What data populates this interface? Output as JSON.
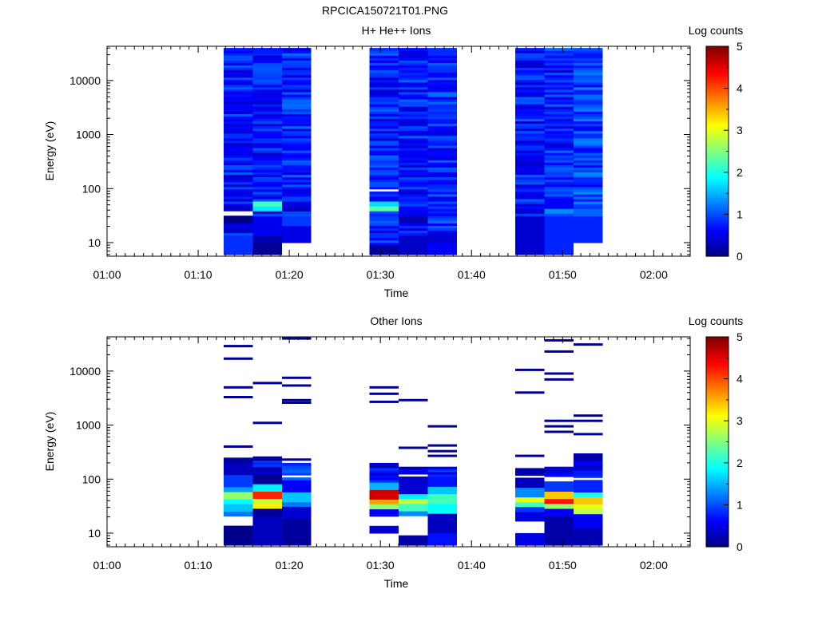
{
  "figure": {
    "title": "RPCICA150721T01.PNG"
  },
  "chart_data": [
    {
      "type": "heatmap",
      "title": "H+ He++ Ions",
      "xlabel": "Time",
      "ylabel": "Energy (eV)",
      "y_scale": "log",
      "x_ticks": [
        "01:00",
        "01:10",
        "01:20",
        "01:30",
        "01:40",
        "01:50",
        "02:00"
      ],
      "y_ticks": [
        "10",
        "100",
        "1000",
        "10000"
      ],
      "colorbar": {
        "label": "Log counts",
        "range": [
          0,
          5
        ],
        "ticks": [
          "0",
          "1",
          "2",
          "3",
          "4",
          "5"
        ]
      },
      "columns": [
        {
          "t_start": "01:12:48",
          "t_end": "01:16:00",
          "e_min": 6,
          "e_max": 40000,
          "base_level": 0.72,
          "features": [
            {
              "e_low": 6,
              "e_high": 14,
              "level": 0.85
            },
            {
              "e_low": 24,
              "e_high": 30,
              "level": 0.0
            },
            {
              "e_low": 30,
              "e_high": 38,
              "level": -1
            },
            {
              "e_low": 38,
              "e_high": 50,
              "level": 0.3
            },
            {
              "e_low": 70,
              "e_high": 90,
              "level": 0.5
            }
          ]
        },
        {
          "t_start": "01:16:00",
          "t_end": "01:19:12",
          "e_min": 6,
          "e_max": 40000,
          "base_level": 0.7,
          "features": [
            {
              "e_low": 6,
              "e_high": 10,
              "level": 0.1
            },
            {
              "e_low": 10,
              "e_high": 14,
              "level": 0.25
            },
            {
              "e_low": 14,
              "e_high": 30,
              "level": 0.55
            },
            {
              "e_low": 38,
              "e_high": 48,
              "level": 1.8
            },
            {
              "e_low": 48,
              "e_high": 58,
              "level": 2.2
            }
          ]
        },
        {
          "t_start": "01:19:12",
          "t_end": "01:22:24",
          "e_min": 10,
          "e_max": 40000,
          "base_level": 0.8,
          "features": [
            {
              "e_low": 10,
              "e_high": 20,
              "level": 0.5
            },
            {
              "e_low": 20,
              "e_high": 30,
              "level": 0.9
            },
            {
              "e_low": 40,
              "e_high": 48,
              "level": 0.3
            }
          ]
        },
        {
          "t_start": "01:28:48",
          "t_end": "01:32:00",
          "e_min": 6,
          "e_max": 40000,
          "base_level": 0.75,
          "features": [
            {
              "e_low": 6,
              "e_high": 9,
              "level": 0.15
            },
            {
              "e_low": 38,
              "e_high": 46,
              "level": 2.3
            },
            {
              "e_low": 46,
              "e_high": 60,
              "level": 1.7
            },
            {
              "e_low": 92,
              "e_high": 100,
              "level": -1
            }
          ]
        },
        {
          "t_start": "01:32:00",
          "t_end": "01:35:12",
          "e_min": 6,
          "e_max": 40000,
          "base_level": 0.75,
          "features": [
            {
              "e_low": 6,
              "e_high": 14,
              "level": 0.35
            },
            {
              "e_low": 24,
              "e_high": 30,
              "level": 0.25
            }
          ]
        },
        {
          "t_start": "01:35:12",
          "t_end": "01:38:24",
          "e_min": 6,
          "e_max": 40000,
          "base_level": 0.8,
          "features": [
            {
              "e_low": 6,
              "e_high": 10,
              "level": 0.6
            },
            {
              "e_low": 10,
              "e_high": 16,
              "level": 0.4
            }
          ]
        },
        {
          "t_start": "01:44:48",
          "t_end": "01:48:00",
          "e_min": 6,
          "e_max": 40000,
          "base_level": 0.72,
          "features": [
            {
              "e_low": 6,
              "e_high": 30,
              "level": 0.4
            }
          ]
        },
        {
          "t_start": "01:48:00",
          "t_end": "01:51:12",
          "e_min": 6,
          "e_max": 40000,
          "base_level": 0.78,
          "features": [
            {
              "e_low": 6,
              "e_high": 30,
              "level": 0.8
            },
            {
              "e_low": 34,
              "e_high": 44,
              "level": 1.3
            }
          ]
        },
        {
          "t_start": "01:51:12",
          "t_end": "01:54:24",
          "e_min": 10,
          "e_max": 40000,
          "base_level": 0.95,
          "features": [
            {
              "e_low": 10,
              "e_high": 30,
              "level": 0.8
            },
            {
              "e_low": 30,
              "e_high": 44,
              "level": 1.1
            }
          ]
        }
      ]
    },
    {
      "type": "heatmap",
      "title": "Other Ions",
      "xlabel": "Time",
      "ylabel": "Energy (eV)",
      "y_scale": "log",
      "x_ticks": [
        "01:00",
        "01:10",
        "01:20",
        "01:30",
        "01:40",
        "01:50",
        "02:00"
      ],
      "y_ticks": [
        "10",
        "100",
        "1000",
        "10000"
      ],
      "colorbar": {
        "label": "Log counts",
        "range": [
          0,
          5
        ],
        "ticks": [
          "0",
          "1",
          "2",
          "3",
          "4",
          "5"
        ]
      },
      "columns": [
        {
          "t_start": "01:12:48",
          "t_end": "01:16:00",
          "e_min": 6,
          "e_max": 250,
          "base_level": 0.7,
          "lines": [
            29000,
            17000,
            5000,
            3300,
            400,
            230,
            210
          ],
          "features": [
            {
              "e_low": 6,
              "e_high": 14,
              "level": 0.05
            },
            {
              "e_low": 14,
              "e_high": 20,
              "level": -1
            },
            {
              "e_low": 20,
              "e_high": 26,
              "level": 1.2
            },
            {
              "e_low": 26,
              "e_high": 34,
              "level": 1.6
            },
            {
              "e_low": 34,
              "e_high": 44,
              "level": 1.9
            },
            {
              "e_low": 44,
              "e_high": 58,
              "level": 2.6
            },
            {
              "e_low": 58,
              "e_high": 75,
              "level": 1.4
            },
            {
              "e_low": 75,
              "e_high": 110,
              "level": 0.9
            },
            {
              "e_low": 120,
              "e_high": 200,
              "level": 0.3
            }
          ]
        },
        {
          "t_start": "01:16:00",
          "t_end": "01:19:12",
          "e_min": 6,
          "e_max": 260,
          "base_level": 0.6,
          "lines": [
            6000,
            1100,
            250,
            230
          ],
          "features": [
            {
              "e_low": 6,
              "e_high": 20,
              "level": 0.3
            },
            {
              "e_low": 20,
              "e_high": 30,
              "level": 0.1
            },
            {
              "e_low": 30,
              "e_high": 36,
              "level": 3.2
            },
            {
              "e_low": 36,
              "e_high": 44,
              "level": 2.9
            },
            {
              "e_low": 44,
              "e_high": 60,
              "level": 4.2
            },
            {
              "e_low": 60,
              "e_high": 80,
              "level": 1.8
            },
            {
              "e_low": 80,
              "e_high": 120,
              "level": 0.1
            }
          ]
        },
        {
          "t_start": "01:19:12",
          "t_end": "01:22:24",
          "e_min": 6,
          "e_max": 200,
          "base_level": 0.8,
          "lines": [
            40000,
            7500,
            5400,
            2900,
            2600,
            230
          ],
          "features": [
            {
              "e_low": 6,
              "e_high": 18,
              "level": 0.15
            },
            {
              "e_low": 18,
              "e_high": 30,
              "level": 0.4
            },
            {
              "e_low": 30,
              "e_high": 40,
              "level": 1.2
            },
            {
              "e_low": 40,
              "e_high": 60,
              "level": 1.6
            },
            {
              "e_low": 60,
              "e_high": 100,
              "level": 0.6
            },
            {
              "e_low": 110,
              "e_high": 120,
              "level": -1
            }
          ]
        },
        {
          "t_start": "01:28:48",
          "t_end": "01:32:00",
          "e_min": 10,
          "e_max": 200,
          "base_level": 0.6,
          "lines": [
            5000,
            3800,
            2700
          ],
          "features": [
            {
              "e_low": 10,
              "e_high": 14,
              "level": 0.4
            },
            {
              "e_low": 14,
              "e_high": 20,
              "level": -1
            },
            {
              "e_low": 20,
              "e_high": 28,
              "level": 0.6
            },
            {
              "e_low": 28,
              "e_high": 34,
              "level": 2.6
            },
            {
              "e_low": 34,
              "e_high": 42,
              "level": 3.6
            },
            {
              "e_low": 42,
              "e_high": 62,
              "level": 4.6
            },
            {
              "e_low": 62,
              "e_high": 90,
              "level": 1.5
            }
          ]
        },
        {
          "t_start": "01:32:00",
          "t_end": "01:35:12",
          "e_min": 6,
          "e_max": 170,
          "base_level": 0.55,
          "lines": [
            2900,
            380
          ],
          "features": [
            {
              "e_low": 6,
              "e_high": 9,
              "level": 0.2
            },
            {
              "e_low": 9,
              "e_high": 20,
              "level": -1
            },
            {
              "e_low": 20,
              "e_high": 26,
              "level": 1.3
            },
            {
              "e_low": 26,
              "e_high": 34,
              "level": 2.2
            },
            {
              "e_low": 34,
              "e_high": 46,
              "level": 2.8
            },
            {
              "e_low": 46,
              "e_high": 56,
              "level": 1.8
            },
            {
              "e_low": 56,
              "e_high": 110,
              "level": 0.4
            },
            {
              "e_low": 110,
              "e_high": 120,
              "level": -1
            }
          ]
        },
        {
          "t_start": "01:35:12",
          "t_end": "01:38:24",
          "e_min": 6,
          "e_max": 170,
          "base_level": 0.6,
          "lines": [
            950,
            420,
            330,
            270
          ],
          "features": [
            {
              "e_low": 6,
              "e_high": 10,
              "level": 0.7
            },
            {
              "e_low": 10,
              "e_high": 24,
              "level": 0.3
            },
            {
              "e_low": 24,
              "e_high": 34,
              "level": 1.9
            },
            {
              "e_low": 34,
              "e_high": 52,
              "level": 2.2
            },
            {
              "e_low": 52,
              "e_high": 70,
              "level": 1.6
            },
            {
              "e_low": 70,
              "e_high": 110,
              "level": 0.7
            }
          ]
        },
        {
          "t_start": "01:44:48",
          "t_end": "01:48:00",
          "e_min": 6,
          "e_max": 160,
          "base_level": 0.5,
          "lines": [
            10500,
            4000,
            270
          ],
          "features": [
            {
              "e_low": 6,
              "e_high": 10,
              "level": 0.5
            },
            {
              "e_low": 10,
              "e_high": 16,
              "level": -1
            },
            {
              "e_low": 16,
              "e_high": 24,
              "level": 0.5
            },
            {
              "e_low": 24,
              "e_high": 30,
              "level": 0.9
            },
            {
              "e_low": 30,
              "e_high": 38,
              "level": 2.2
            },
            {
              "e_low": 38,
              "e_high": 48,
              "level": 3.0
            },
            {
              "e_low": 48,
              "e_high": 70,
              "level": 1.3
            },
            {
              "e_low": 70,
              "e_high": 110,
              "level": 0.3
            },
            {
              "e_low": 110,
              "e_high": 120,
              "level": -1
            }
          ]
        },
        {
          "t_start": "01:48:00",
          "t_end": "01:51:12",
          "e_min": 6,
          "e_max": 170,
          "base_level": 0.5,
          "lines": [
            37000,
            23000,
            9000,
            7000,
            1200,
            950,
            750
          ],
          "features": [
            {
              "e_low": 6,
              "e_high": 20,
              "level": 0.2
            },
            {
              "e_low": 20,
              "e_high": 28,
              "level": 0.6
            },
            {
              "e_low": 28,
              "e_high": 34,
              "level": 2.6
            },
            {
              "e_low": 34,
              "e_high": 44,
              "level": 4.3
            },
            {
              "e_low": 44,
              "e_high": 60,
              "level": 3.4
            },
            {
              "e_low": 60,
              "e_high": 90,
              "level": 0.9
            },
            {
              "e_low": 90,
              "e_high": 110,
              "level": -1
            }
          ]
        },
        {
          "t_start": "01:51:12",
          "t_end": "01:54:24",
          "e_min": 6,
          "e_max": 300,
          "base_level": 0.5,
          "lines": [
            31000,
            1500,
            1200,
            680
          ],
          "features": [
            {
              "e_low": 6,
              "e_high": 12,
              "level": 0.25
            },
            {
              "e_low": 12,
              "e_high": 20,
              "level": 0.55
            },
            {
              "e_low": 24,
              "e_high": 28,
              "level": 2.8
            },
            {
              "e_low": 28,
              "e_high": 34,
              "level": 3.0
            },
            {
              "e_low": 34,
              "e_high": 46,
              "level": 3.4
            },
            {
              "e_low": 46,
              "e_high": 60,
              "level": 2.0
            },
            {
              "e_low": 60,
              "e_high": 100,
              "level": 0.8
            },
            {
              "e_low": 100,
              "e_high": 110,
              "level": -1
            },
            {
              "e_low": 230,
              "e_high": 300,
              "level": 0.2
            }
          ]
        }
      ]
    }
  ]
}
